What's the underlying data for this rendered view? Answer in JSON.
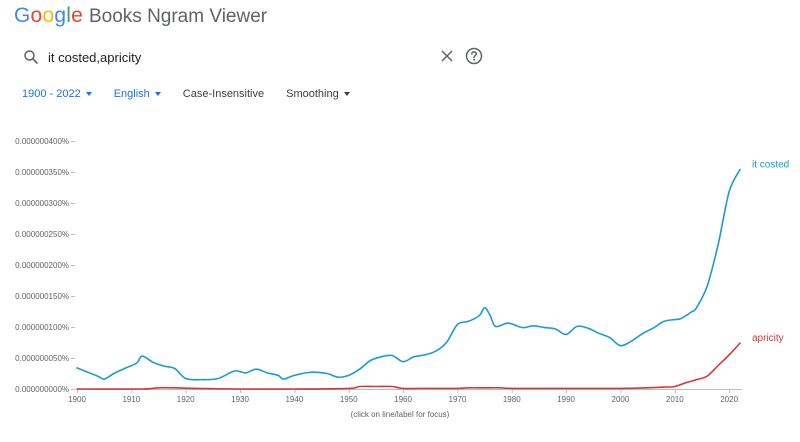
{
  "brand": {
    "logo_letters": [
      {
        "char": "G",
        "color": "#4285f4"
      },
      {
        "char": "o",
        "color": "#ea4335"
      },
      {
        "char": "o",
        "color": "#fbbc05"
      },
      {
        "char": "g",
        "color": "#4285f4"
      },
      {
        "char": "l",
        "color": "#34a853"
      },
      {
        "char": "e",
        "color": "#ea4335"
      }
    ],
    "title": "Books Ngram Viewer"
  },
  "search": {
    "value": "it costed,apricity",
    "search_icon": "search-icon",
    "clear_icon": "close-icon",
    "help_icon": "help-circle-icon"
  },
  "controls": {
    "year_range": "1900 - 2022",
    "corpus": "English",
    "case": "Case-Insensitive",
    "smoothing": "Smoothing"
  },
  "footer_note": "(click on line/label for focus)",
  "colors": {
    "series_1": "#1a9bd7",
    "series_2": "#d23a36",
    "accent": "#1a73e8",
    "axis_text": "#5f6368"
  },
  "chart_data": {
    "type": "line",
    "x_ticks": [
      "1900",
      "1910",
      "1920",
      "1930",
      "1940",
      "1950",
      "1960",
      "1970",
      "1980",
      "1990",
      "2000",
      "2010",
      "2020"
    ],
    "y_ticks": [
      "0.000000000%",
      "0.000000050%",
      "0.000000100%",
      "0.000000150%",
      "0.000000200%",
      "0.000000250%",
      "0.000000300%",
      "0.000000350%",
      "0.000000400%"
    ],
    "xlim": [
      1900,
      2022
    ],
    "ylim": [
      0,
      4e-07
    ],
    "grid": false,
    "series": [
      {
        "name": "it costed",
        "x": [
          1900,
          1902,
          1904,
          1905,
          1907,
          1909,
          1911,
          1912,
          1914,
          1916,
          1918,
          1920,
          1923,
          1926,
          1929,
          1931,
          1933,
          1935,
          1937,
          1938,
          1940,
          1943,
          1946,
          1948,
          1950,
          1952,
          1954,
          1956,
          1958,
          1960,
          1962,
          1964,
          1966,
          1968,
          1970,
          1972,
          1974,
          1975,
          1976,
          1977,
          1979,
          1980,
          1982,
          1984,
          1986,
          1988,
          1990,
          1992,
          1994,
          1996,
          1998,
          2000,
          2002,
          2004,
          2006,
          2008,
          2010,
          2011,
          2012,
          2013,
          2014,
          2016,
          2018,
          2020,
          2022
        ],
        "values": [
          3.4e-08,
          2.7e-08,
          2e-08,
          1.6e-08,
          2.6e-08,
          3.4e-08,
          4.2e-08,
          5.3e-08,
          4.3e-08,
          3.7e-08,
          3.3e-08,
          1.7e-08,
          1.5e-08,
          1.7e-08,
          2.9e-08,
          2.6e-08,
          3.2e-08,
          2.6e-08,
          2.2e-08,
          1.6e-08,
          2.2e-08,
          2.7e-08,
          2.5e-08,
          1.9e-08,
          2.2e-08,
          3.2e-08,
          4.6e-08,
          5.2e-08,
          5.4e-08,
          4.4e-08,
          5.2e-08,
          5.5e-08,
          6.1e-08,
          7.5e-08,
          1.04e-07,
          1.09e-07,
          1.18e-07,
          1.31e-07,
          1.19e-07,
          1.01e-07,
          1.06e-07,
          1.05e-07,
          9.9e-08,
          1.02e-07,
          9.9e-08,
          9.7e-08,
          8.8e-08,
          1.01e-07,
          9.8e-08,
          9e-08,
          8.3e-08,
          7e-08,
          7.7e-08,
          8.9e-08,
          9.8e-08,
          1.09e-07,
          1.12e-07,
          1.13e-07,
          1.18e-07,
          1.24e-07,
          1.31e-07,
          1.67e-07,
          2.34e-07,
          3.18e-07,
          3.54e-07
        ]
      },
      {
        "name": "apricity",
        "x": [
          1900,
          1912,
          1915,
          1918,
          1922,
          1930,
          1940,
          1950,
          1952,
          1955,
          1958,
          1960,
          1965,
          1970,
          1972,
          1975,
          1978,
          1980,
          1990,
          2000,
          2005,
          2008,
          2010,
          2012,
          2014,
          2016,
          2018,
          2020,
          2022
        ],
        "values": [
          0.0,
          0.0,
          2e-09,
          2e-09,
          1e-09,
          0.0,
          0.0,
          1e-09,
          4e-09,
          4e-09,
          4e-09,
          1e-09,
          1e-09,
          1e-09,
          2e-09,
          2e-09,
          2e-09,
          1e-09,
          1e-09,
          1e-09,
          2e-09,
          3e-09,
          4e-09,
          1e-08,
          1.5e-08,
          2.1e-08,
          3.8e-08,
          5.5e-08,
          7.4e-08
        ]
      }
    ]
  }
}
